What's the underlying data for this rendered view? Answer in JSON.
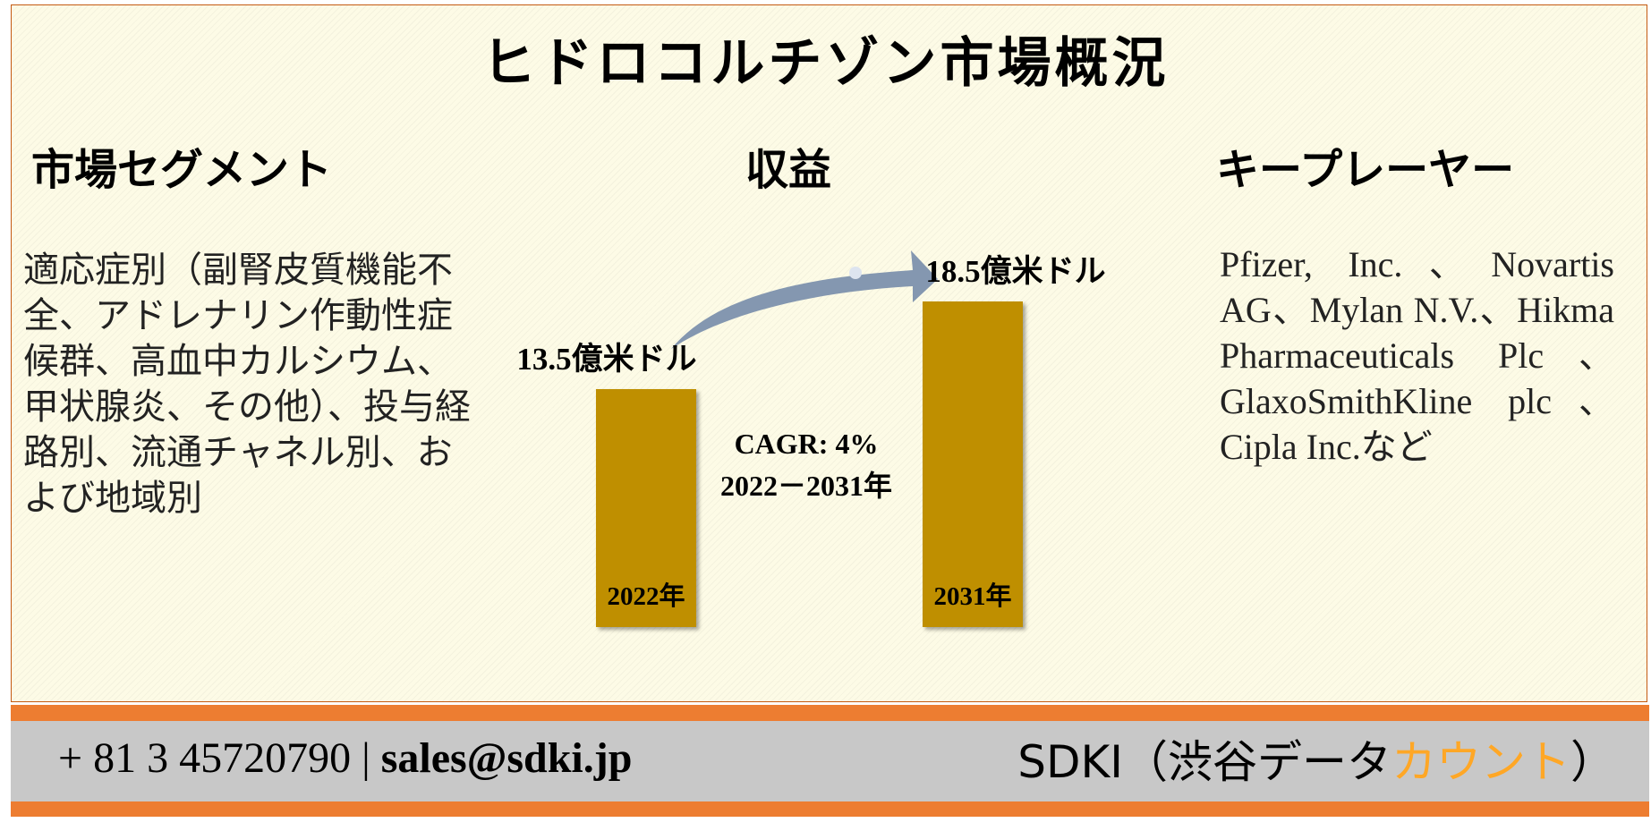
{
  "title": "ヒドロコルチゾン市場概況",
  "segments": {
    "heading": "市場セグメント",
    "text": "適応症別（副腎皮質機能不全、アドレナリン作動性症候群、高血中カルシウム、甲状腺炎、その他）、投与経路別、流通チャネル別、および地域別"
  },
  "revenue": {
    "heading": "収益",
    "type": "bar",
    "categories": [
      "2022年",
      "2031年"
    ],
    "values": [
      13.5,
      18.5
    ],
    "value_labels": [
      "13.5億米ドル",
      "18.5億米ドル"
    ],
    "color": "#bf8f00",
    "cagr": [
      "CAGR: 4%",
      "2022－2031年"
    ]
  },
  "players": {
    "heading": "キープレーヤー",
    "text": "Pfizer, Inc.、Novartis AG、Mylan N.V.、Hikma Pharmaceuticals Plc、GlaxoSmithKline plc、Cipla Inc.など"
  },
  "footer": {
    "phone": "+ 81 3 45720790",
    "separator": "|",
    "email": "sales@sdki.jp",
    "brand": "SDKI（渋谷データ",
    "brand_highlight": "カウント",
    "brand_end": "）"
  }
}
